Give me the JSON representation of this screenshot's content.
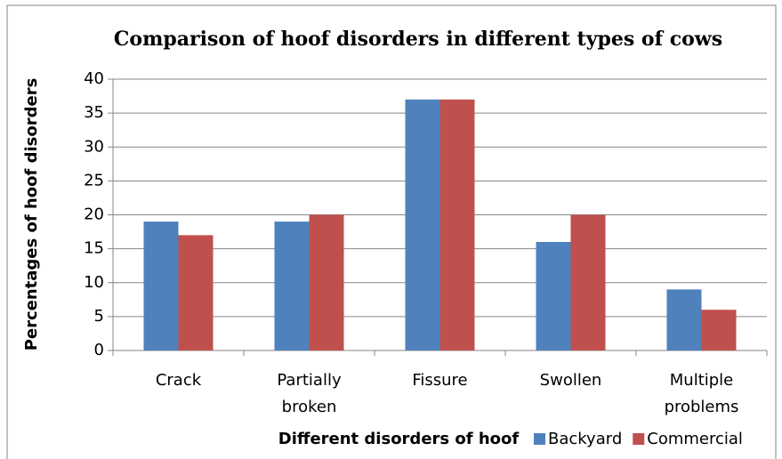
{
  "chart_data": {
    "type": "bar",
    "title": "Comparison of hoof disorders in different types of cows",
    "x_label": "Different disorders of hoof",
    "y_label": "Percentages of hoof disorders",
    "categories": [
      "Crack",
      "Partially broken",
      "Fissure",
      "Swollen",
      "Multiple problems"
    ],
    "series": [
      {
        "name": "Backyard",
        "color": "#4f81bd",
        "values": [
          19,
          19,
          37,
          16,
          9
        ]
      },
      {
        "name": "Commercial",
        "color": "#c0504d",
        "values": [
          17,
          20,
          37,
          20,
          6
        ]
      }
    ],
    "ylim": [
      0,
      40
    ],
    "yticks": [
      0,
      5,
      10,
      15,
      20,
      25,
      30,
      35,
      40
    ],
    "grid": true,
    "legend": "bottom-right"
  }
}
